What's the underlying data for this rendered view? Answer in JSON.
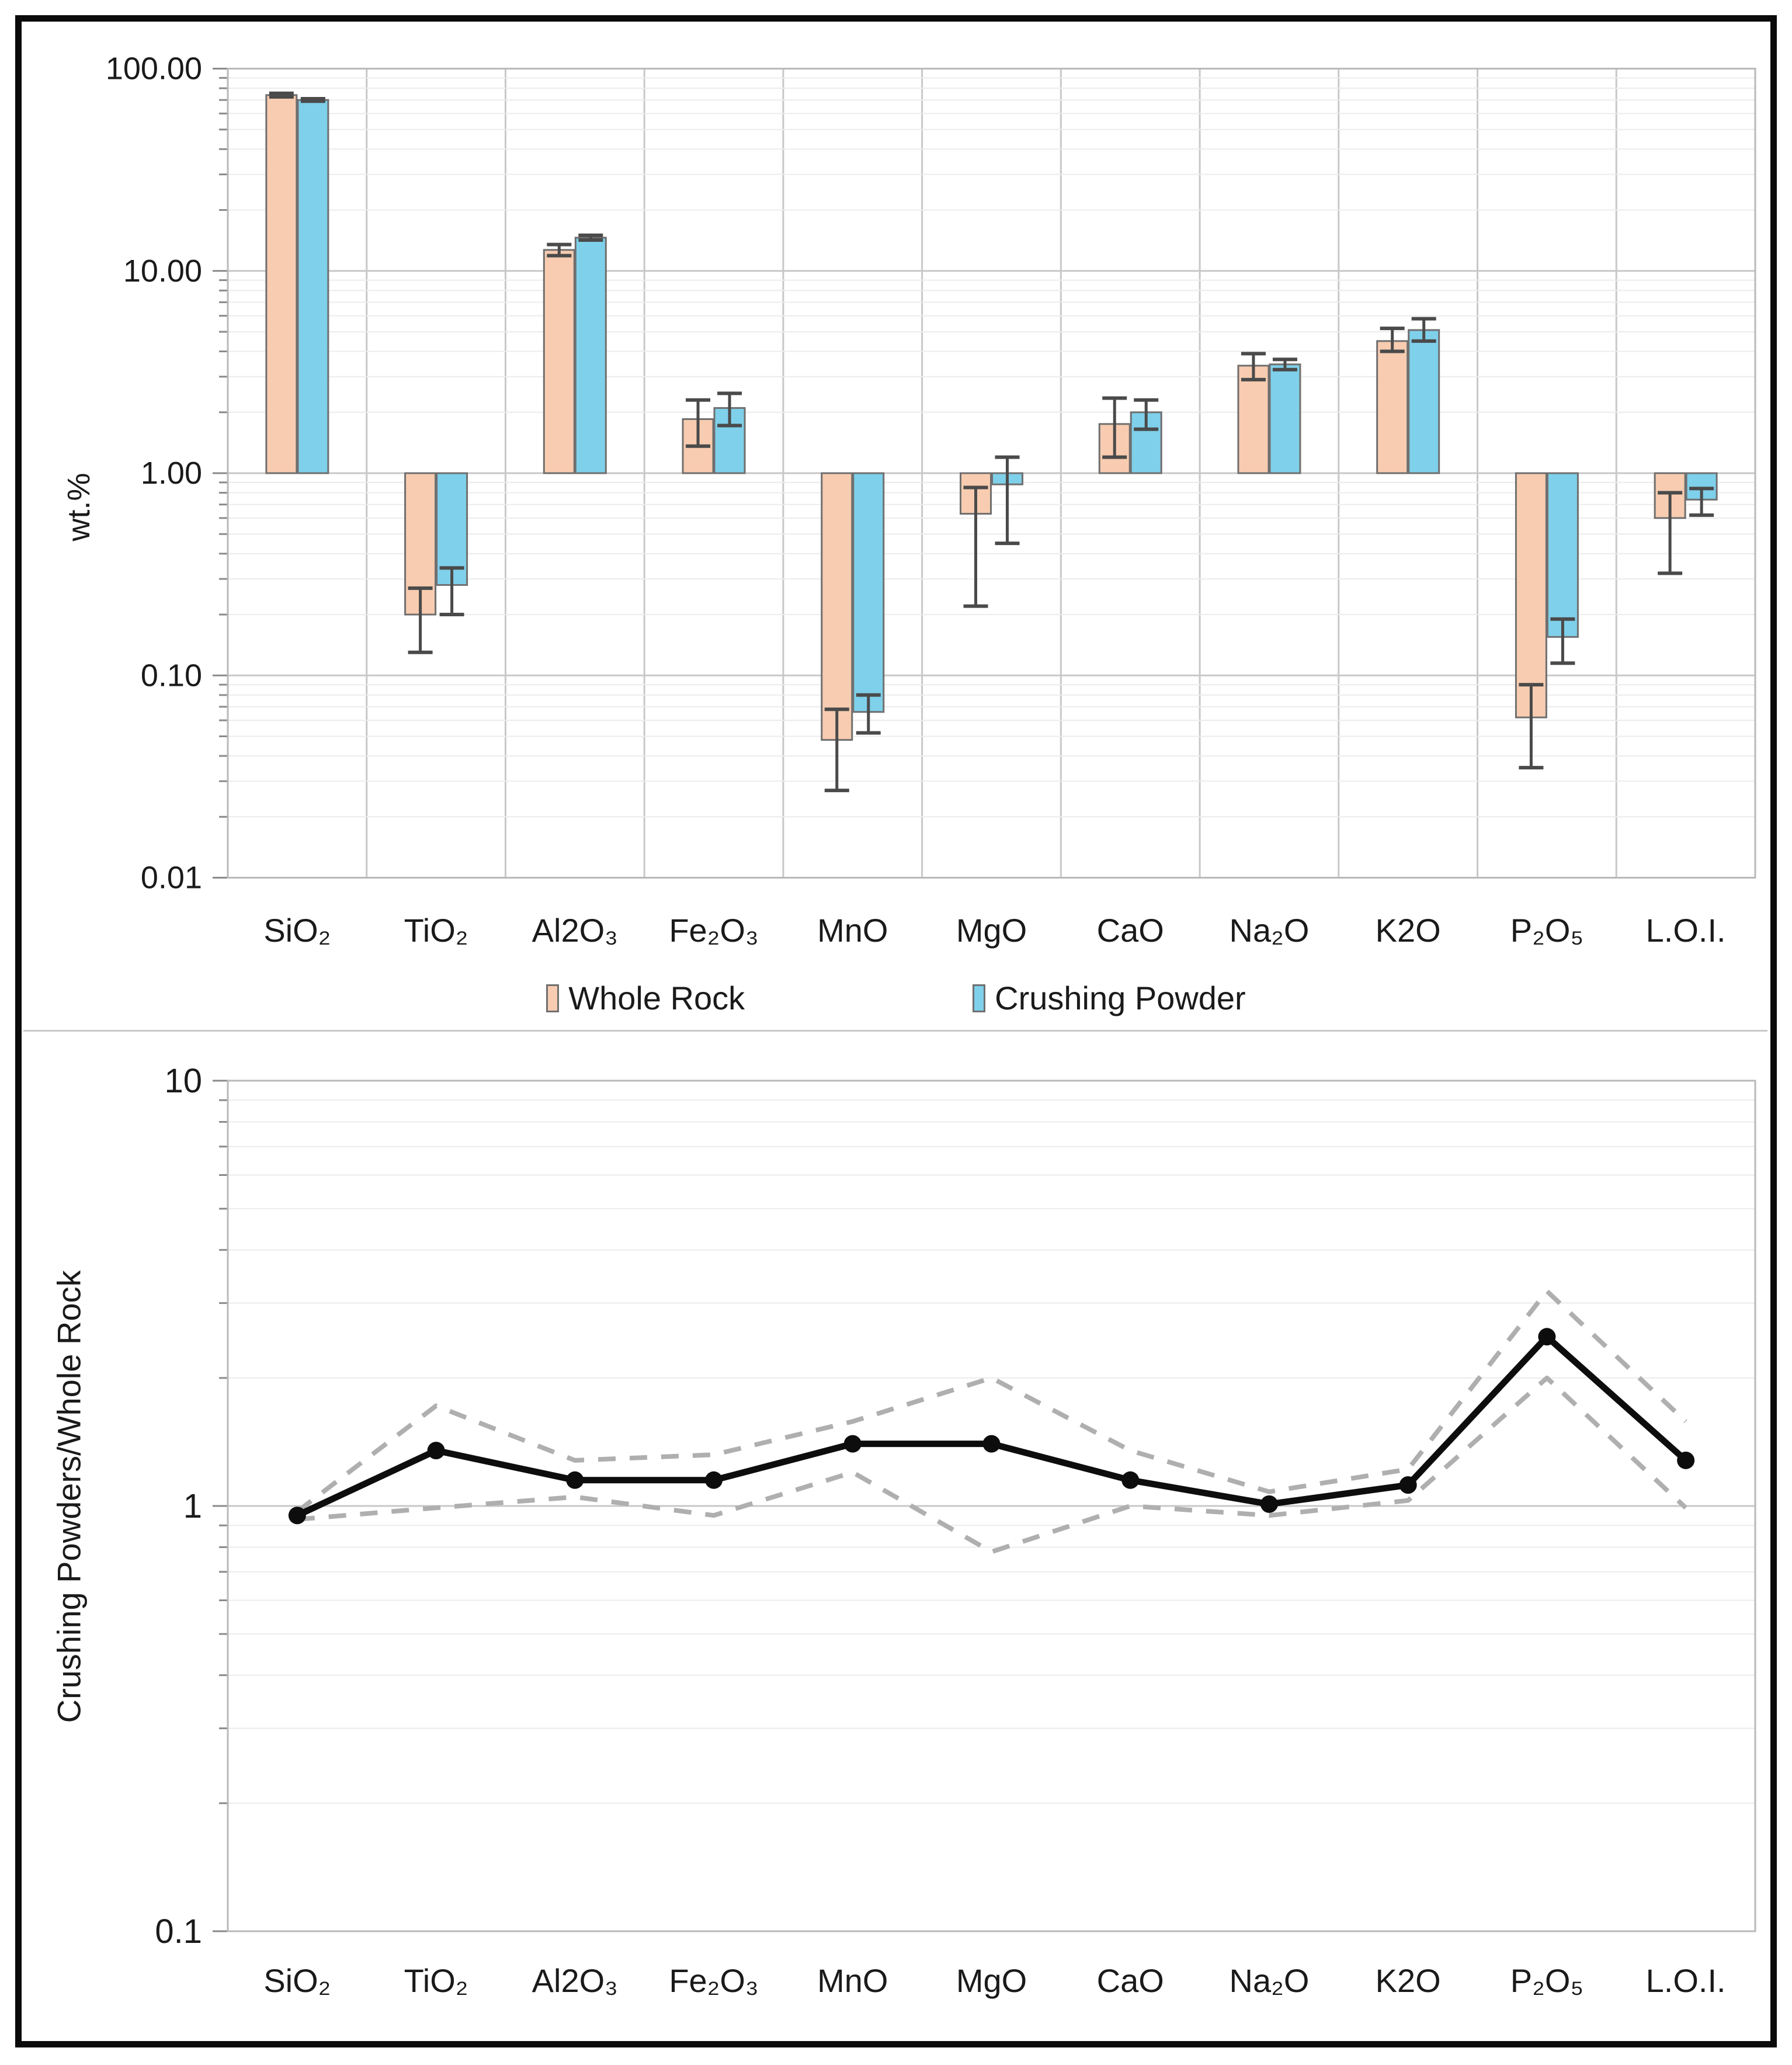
{
  "figure": {
    "top_y_axis_title": "wt.%",
    "bottom_y_axis_title": "Crushing Powders/Whole Rock"
  },
  "chart_data": [
    {
      "type": "bar",
      "title": "",
      "xlabel": "",
      "ylabel": "wt.%",
      "yscale": "log",
      "ylim": [
        0.01,
        100
      ],
      "ytick_labels": [
        "100.00",
        "10.00",
        "1.00",
        "0.10",
        "0.01"
      ],
      "ytick_values": [
        100,
        10,
        1,
        0.1,
        0.01
      ],
      "bar_baseline": 1.0,
      "grid": "log major+minor horizontal, vertical category separators",
      "legend_position": "bottom",
      "categories": [
        "SiO₂",
        "TiO₂",
        "Al2O₃",
        "Fe₂O₃",
        "MnO",
        "MgO",
        "CaO",
        "Na₂O",
        "K2O",
        "P₂O₅",
        "L.O.I."
      ],
      "series": [
        {
          "name": "Whole Rock",
          "color": "#F8CCB0",
          "border_color": "#6F6F6F",
          "values": [
            74.0,
            0.2,
            12.7,
            1.85,
            0.048,
            0.63,
            1.75,
            3.4,
            4.5,
            0.062,
            0.6
          ],
          "err_low": [
            72.5,
            0.13,
            11.9,
            1.36,
            0.027,
            0.22,
            1.2,
            2.9,
            4.0,
            0.035,
            0.32
          ],
          "err_high": [
            75.5,
            0.27,
            13.5,
            2.3,
            0.068,
            0.85,
            2.35,
            3.9,
            5.2,
            0.09,
            0.8
          ]
        },
        {
          "name": "Crushing Powder",
          "color": "#7FD0EA",
          "border_color": "#6F6F6F",
          "values": [
            70.0,
            0.28,
            14.6,
            2.1,
            0.066,
            0.88,
            2.0,
            3.45,
            5.1,
            0.155,
            0.74
          ],
          "err_low": [
            69.0,
            0.2,
            14.2,
            1.72,
            0.052,
            0.45,
            1.65,
            3.25,
            4.5,
            0.115,
            0.62
          ],
          "err_high": [
            71.0,
            0.34,
            15.0,
            2.48,
            0.08,
            1.2,
            2.3,
            3.65,
            5.8,
            0.19,
            0.84
          ]
        }
      ]
    },
    {
      "type": "line",
      "title": "",
      "xlabel": "",
      "ylabel": "Crushing Powders/Whole Rock",
      "yscale": "log",
      "ylim": [
        0.1,
        10
      ],
      "ytick_labels": [
        "10",
        "1",
        "0.1"
      ],
      "ytick_values": [
        10,
        1,
        0.1
      ],
      "grid": "log major+minor horizontal only",
      "legend_position": "none",
      "categories": [
        "SiO₂",
        "TiO₂",
        "Al2O₃",
        "Fe₂O₃",
        "MnO",
        "MgO",
        "CaO",
        "Na₂O",
        "K2O",
        "P₂O₅",
        "L.O.I."
      ],
      "series": [
        {
          "name": "Crushing Powder / Whole Rock ratio",
          "style": "solid-with-markers",
          "color": "#0D0D0D",
          "values": [
            0.95,
            1.35,
            1.15,
            1.15,
            1.4,
            1.4,
            1.15,
            1.01,
            1.12,
            2.5,
            1.28
          ]
        },
        {
          "name": "upper bound",
          "style": "dashed",
          "color": "#AFAFAF",
          "values": [
            0.97,
            1.72,
            1.28,
            1.32,
            1.58,
            2.0,
            1.35,
            1.08,
            1.22,
            3.2,
            1.58
          ]
        },
        {
          "name": "lower bound",
          "style": "dashed",
          "color": "#AFAFAF",
          "values": [
            0.93,
            0.99,
            1.05,
            0.95,
            1.2,
            0.78,
            1.0,
            0.95,
            1.03,
            2.0,
            0.99
          ]
        }
      ]
    }
  ]
}
